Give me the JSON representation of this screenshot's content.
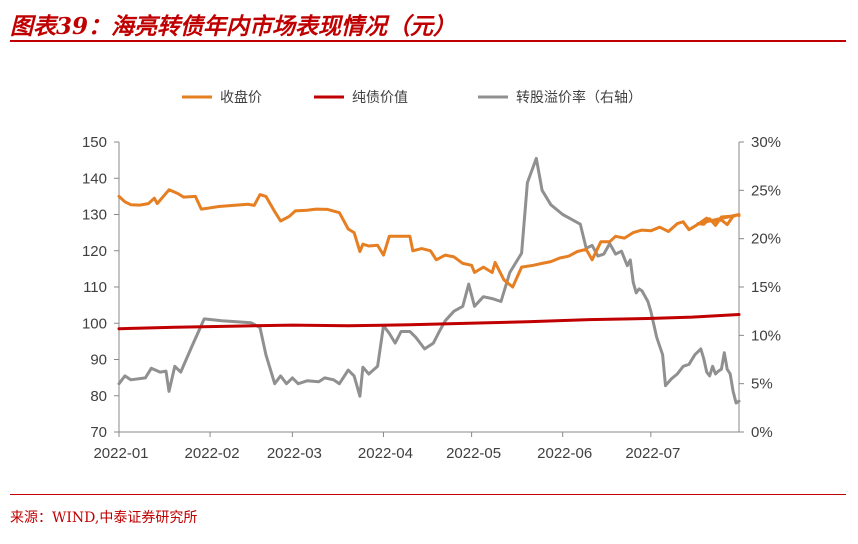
{
  "header": {
    "title": "图表39：海亮转债年内市场表现情况（元）"
  },
  "footer": {
    "source": "来源：WIND,中泰证券研究所"
  },
  "colors": {
    "close": "#e67e22",
    "bond": "#c00000",
    "premium": "#909090",
    "accent": "#c00000"
  },
  "chart_data": {
    "type": "line",
    "title": "图表39：海亮转债年内市场表现情况（元）",
    "legend_position": "top",
    "grid": false,
    "x_range": [
      "2022-01-01",
      "2022-07-31"
    ],
    "x_ticks": [
      "2022-01",
      "2022-02",
      "2022-03",
      "2022-04",
      "2022-05",
      "2022-06",
      "2022-07"
    ],
    "y_left": {
      "range": [
        70,
        150
      ],
      "ticks": [
        "150",
        "140",
        "130",
        "120",
        "110",
        "100",
        "90",
        "80",
        "70"
      ]
    },
    "y_right": {
      "range": [
        0,
        30
      ],
      "unit": "%",
      "ticks": [
        "30%",
        "25%",
        "20%",
        "15%",
        "10%",
        "5%",
        "0%"
      ]
    },
    "series": [
      {
        "name": "收盘价",
        "axis": "left",
        "color": "#e67e22",
        "points": [
          [
            "2022-01-01",
            135.0
          ],
          [
            "2022-01-03",
            133.5
          ],
          [
            "2022-01-05",
            132.7
          ],
          [
            "2022-01-08",
            132.6
          ],
          [
            "2022-01-11",
            133.0
          ],
          [
            "2022-01-13",
            134.5
          ],
          [
            "2022-01-14",
            133.0
          ],
          [
            "2022-01-18",
            136.8
          ],
          [
            "2022-01-21",
            135.8
          ],
          [
            "2022-01-23",
            134.8
          ],
          [
            "2022-01-27",
            135.0
          ],
          [
            "2022-01-29",
            131.5
          ],
          [
            "2022-01-31",
            131.7
          ],
          [
            "2022-02-04",
            132.2
          ],
          [
            "2022-02-10",
            132.6
          ],
          [
            "2022-02-14",
            132.8
          ],
          [
            "2022-02-16",
            132.5
          ],
          [
            "2022-02-18",
            135.5
          ],
          [
            "2022-02-20",
            135.0
          ],
          [
            "2022-02-23",
            130.8
          ],
          [
            "2022-02-25",
            128.2
          ],
          [
            "2022-02-28",
            129.5
          ],
          [
            "2022-03-02",
            131.0
          ],
          [
            "2022-03-06",
            131.2
          ],
          [
            "2022-03-09",
            131.5
          ],
          [
            "2022-03-13",
            131.4
          ],
          [
            "2022-03-17",
            130.5
          ],
          [
            "2022-03-20",
            126.0
          ],
          [
            "2022-03-22",
            125.0
          ],
          [
            "2022-03-24",
            119.8
          ],
          [
            "2022-03-25",
            121.8
          ],
          [
            "2022-03-27",
            121.3
          ],
          [
            "2022-03-30",
            121.5
          ],
          [
            "2022-04-01",
            118.8
          ],
          [
            "2022-04-03",
            124.0
          ],
          [
            "2022-04-07",
            124.0
          ],
          [
            "2022-04-10",
            124.0
          ],
          [
            "2022-04-11",
            120.0
          ],
          [
            "2022-04-14",
            120.6
          ],
          [
            "2022-04-17",
            120.0
          ],
          [
            "2022-04-19",
            117.5
          ],
          [
            "2022-04-22",
            118.8
          ],
          [
            "2022-04-25",
            118.3
          ],
          [
            "2022-04-28",
            116.5
          ],
          [
            "2022-05-01",
            116.0
          ],
          [
            "2022-05-02",
            114.0
          ],
          [
            "2022-05-05",
            115.5
          ],
          [
            "2022-05-08",
            114.0
          ],
          [
            "2022-05-09",
            116.8
          ],
          [
            "2022-05-12",
            112.0
          ],
          [
            "2022-05-15",
            110.0
          ],
          [
            "2022-05-18",
            115.5
          ],
          [
            "2022-05-22",
            116.0
          ],
          [
            "2022-05-25",
            116.5
          ],
          [
            "2022-05-28",
            117.0
          ],
          [
            "2022-05-31",
            118.0
          ],
          [
            "2022-06-03",
            118.5
          ],
          [
            "2022-06-06",
            119.8
          ],
          [
            "2022-06-09",
            120.4
          ],
          [
            "2022-06-11",
            117.5
          ],
          [
            "2022-06-14",
            122.5
          ],
          [
            "2022-06-17",
            122.5
          ],
          [
            "2022-06-19",
            124.0
          ],
          [
            "2022-06-22",
            123.5
          ],
          [
            "2022-06-25",
            125.0
          ],
          [
            "2022-06-28",
            125.7
          ],
          [
            "2022-07-01",
            125.5
          ],
          [
            "2022-07-04",
            126.5
          ],
          [
            "2022-07-07",
            125.3
          ],
          [
            "2022-07-10",
            127.5
          ],
          [
            "2022-07-12",
            128.0
          ],
          [
            "2022-07-14",
            125.8
          ],
          [
            "2022-07-17",
            127.3
          ],
          [
            "2022-07-20",
            129.0
          ],
          [
            "2022-07-22",
            128.0
          ],
          [
            "2022-07-25",
            128.5
          ],
          [
            "2022-07-27",
            127.2
          ],
          [
            "2022-07-29",
            129.5
          ],
          [
            "2022-07-31",
            130.0
          ],
          [
            "2022-07-17",
            127.5
          ],
          [
            "2022-07-19",
            127.3
          ],
          [
            "2022-07-21",
            128.8
          ],
          [
            "2022-07-23",
            127.0
          ],
          [
            "2022-07-25",
            129.3
          ],
          [
            "2022-07-28",
            129.5
          ],
          [
            "2022-07-31",
            130.0
          ],
          [
            "2022-07-31",
            129.7
          ]
        ]
      },
      {
        "name": "纯债价值",
        "axis": "left",
        "color": "#c00000",
        "points": [
          [
            "2022-01-01",
            98.5
          ],
          [
            "2022-01-20",
            98.9
          ],
          [
            "2022-02-10",
            99.2
          ],
          [
            "2022-03-01",
            99.5
          ],
          [
            "2022-03-20",
            99.3
          ],
          [
            "2022-04-10",
            99.6
          ],
          [
            "2022-04-30",
            100.0
          ],
          [
            "2022-05-20",
            100.4
          ],
          [
            "2022-06-10",
            101.0
          ],
          [
            "2022-06-30",
            101.3
          ],
          [
            "2022-07-15",
            101.7
          ],
          [
            "2022-07-31",
            102.4
          ]
        ]
      },
      {
        "name": "转股溢价率（右轴）",
        "axis": "right",
        "color": "#909090",
        "points": [
          [
            "2022-01-01",
            5.0
          ],
          [
            "2022-01-03",
            5.8
          ],
          [
            "2022-01-05",
            5.4
          ],
          [
            "2022-01-10",
            5.6
          ],
          [
            "2022-01-12",
            6.6
          ],
          [
            "2022-01-15",
            6.2
          ],
          [
            "2022-01-17",
            6.3
          ],
          [
            "2022-01-18",
            4.2
          ],
          [
            "2022-01-20",
            6.8
          ],
          [
            "2022-01-22",
            6.2
          ],
          [
            "2022-01-26",
            9.0
          ],
          [
            "2022-01-30",
            11.7
          ],
          [
            "2022-02-05",
            11.5
          ],
          [
            "2022-02-15",
            11.3
          ],
          [
            "2022-02-18",
            10.8
          ],
          [
            "2022-02-20",
            8.0
          ],
          [
            "2022-02-23",
            5.0
          ],
          [
            "2022-02-25",
            5.8
          ],
          [
            "2022-02-27",
            5.0
          ],
          [
            "2022-03-01",
            5.6
          ],
          [
            "2022-03-03",
            5.0
          ],
          [
            "2022-03-06",
            5.3
          ],
          [
            "2022-03-10",
            5.2
          ],
          [
            "2022-03-12",
            5.6
          ],
          [
            "2022-03-15",
            5.4
          ],
          [
            "2022-03-17",
            5.0
          ],
          [
            "2022-03-20",
            6.4
          ],
          [
            "2022-03-22",
            5.8
          ],
          [
            "2022-03-24",
            3.7
          ],
          [
            "2022-03-25",
            6.7
          ],
          [
            "2022-03-27",
            6.0
          ],
          [
            "2022-03-30",
            6.8
          ],
          [
            "2022-04-01",
            11.0
          ],
          [
            "2022-04-03",
            10.2
          ],
          [
            "2022-04-05",
            9.2
          ],
          [
            "2022-04-07",
            10.4
          ],
          [
            "2022-04-10",
            10.4
          ],
          [
            "2022-04-12",
            9.8
          ],
          [
            "2022-04-15",
            8.6
          ],
          [
            "2022-04-18",
            9.2
          ],
          [
            "2022-04-20",
            10.4
          ],
          [
            "2022-04-22",
            11.5
          ],
          [
            "2022-04-25",
            12.5
          ],
          [
            "2022-04-28",
            13.0
          ],
          [
            "2022-04-30",
            15.3
          ],
          [
            "2022-05-02",
            13.0
          ],
          [
            "2022-05-05",
            14.0
          ],
          [
            "2022-05-08",
            13.8
          ],
          [
            "2022-05-11",
            13.5
          ],
          [
            "2022-05-14",
            16.5
          ],
          [
            "2022-05-18",
            18.5
          ],
          [
            "2022-05-20",
            25.8
          ],
          [
            "2022-05-23",
            28.3
          ],
          [
            "2022-05-25",
            25.0
          ],
          [
            "2022-05-28",
            23.5
          ],
          [
            "2022-06-01",
            22.5
          ],
          [
            "2022-06-04",
            22.0
          ],
          [
            "2022-06-07",
            21.5
          ],
          [
            "2022-06-09",
            19.0
          ],
          [
            "2022-06-11",
            19.3
          ],
          [
            "2022-06-13",
            18.2
          ],
          [
            "2022-06-15",
            18.4
          ],
          [
            "2022-06-17",
            19.5
          ],
          [
            "2022-06-19",
            18.4
          ],
          [
            "2022-06-21",
            18.7
          ],
          [
            "2022-06-23",
            17.2
          ],
          [
            "2022-06-24",
            17.8
          ],
          [
            "2022-06-25",
            15.5
          ],
          [
            "2022-06-26",
            14.4
          ],
          [
            "2022-06-27",
            14.8
          ],
          [
            "2022-06-28",
            14.6
          ],
          [
            "2022-06-30",
            13.5
          ],
          [
            "2022-07-01",
            12.5
          ],
          [
            "2022-07-03",
            9.8
          ],
          [
            "2022-07-05",
            8.0
          ],
          [
            "2022-07-06",
            4.8
          ],
          [
            "2022-07-08",
            5.5
          ],
          [
            "2022-07-10",
            6.0
          ],
          [
            "2022-07-12",
            6.8
          ],
          [
            "2022-07-14",
            7.0
          ],
          [
            "2022-07-16",
            8.0
          ],
          [
            "2022-07-18",
            8.6
          ],
          [
            "2022-07-19",
            7.6
          ],
          [
            "2022-07-20",
            6.2
          ],
          [
            "2022-07-21",
            5.8
          ],
          [
            "2022-07-22",
            6.8
          ],
          [
            "2022-07-23",
            6.0
          ],
          [
            "2022-07-24",
            6.3
          ],
          [
            "2022-07-25",
            6.5
          ],
          [
            "2022-07-26",
            8.2
          ],
          [
            "2022-07-27",
            6.5
          ],
          [
            "2022-07-28",
            6.0
          ],
          [
            "2022-07-29",
            4.2
          ],
          [
            "2022-07-30",
            3.0
          ],
          [
            "2022-07-31",
            3.2
          ]
        ]
      }
    ]
  }
}
